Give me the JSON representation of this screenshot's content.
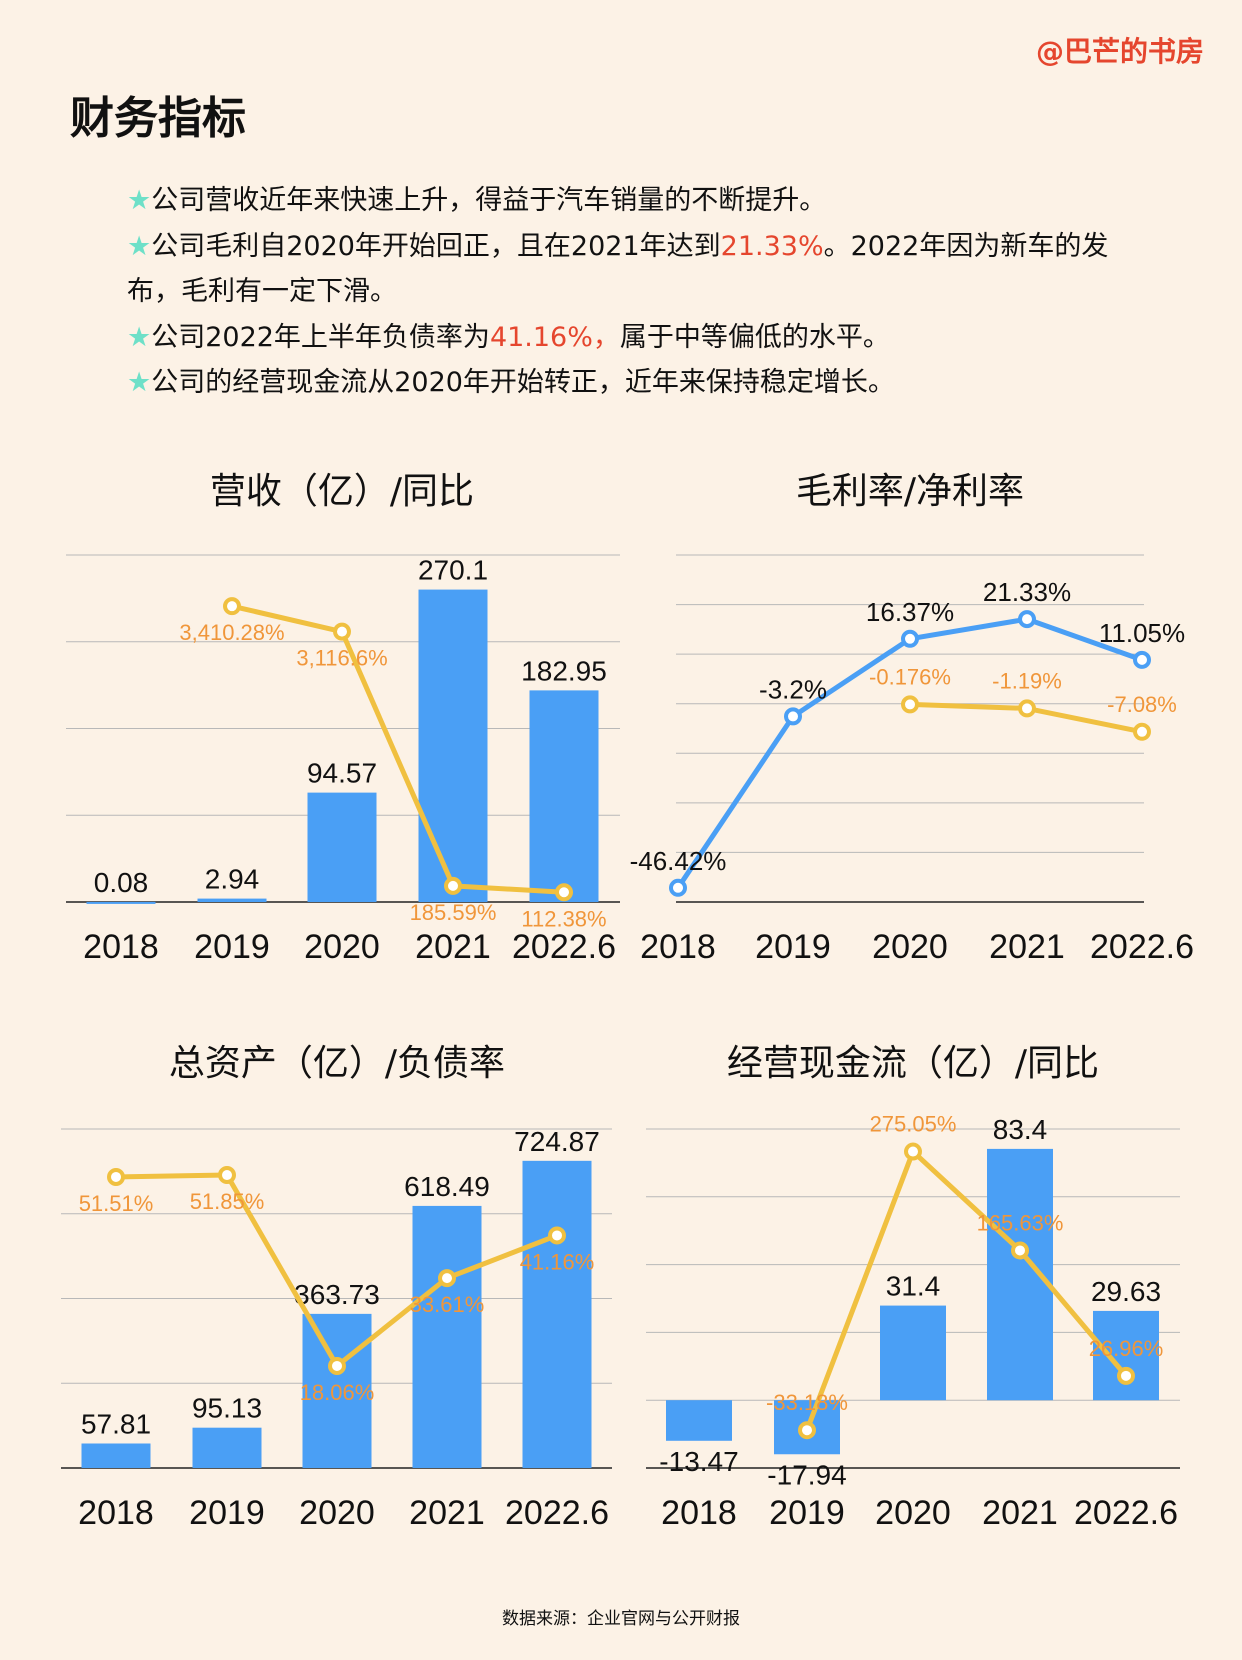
{
  "brand": "@巴芒的书房",
  "title": "财务指标",
  "bullets": [
    {
      "star": "★",
      "text": "公司营收近年来快速上升，得益于汽车销量的不断提升。"
    },
    {
      "star": "★",
      "pre": "公司毛利自2020年开始回正，且在2021年达到",
      "highlight": "21.33%",
      "post": "。2022年因为新车的发布，毛利有一定下滑。"
    },
    {
      "star": "★",
      "pre": "公司2022年上半年负债率为",
      "highlight": "41.16%，",
      "post": "属于中等偏低的水平。"
    },
    {
      "star": "★",
      "text": "公司的经营现金流从2020年开始转正，近年来保持稳定增长。"
    }
  ],
  "footer": "数据来源：企业官网与公开财报",
  "colors": {
    "background": "#fcf2e6",
    "bar": "#4a9ff5",
    "line_yellow": "#f0c040",
    "line_blue": "#4a9ff5",
    "label_orange": "#f0963a",
    "highlight_red": "#e5462e",
    "star": "#6ee0c8"
  },
  "chart_data": [
    {
      "type": "bar+line",
      "title": "营收（亿）/同比",
      "categories": [
        "2018",
        "2019",
        "2020",
        "2021",
        "2022.6"
      ],
      "grid": true,
      "ylim": [
        0,
        300
      ],
      "y2lim": [
        0,
        4000
      ],
      "bars": {
        "values": [
          0.08,
          2.94,
          94.57,
          270.1,
          182.95
        ],
        "labels": [
          "0.08",
          "2.94",
          "94.57",
          "270.1",
          "182.95"
        ]
      },
      "lines": [
        {
          "axis": "y2",
          "color": "yellow",
          "values": [
            null,
            3410.28,
            3116.6,
            185.59,
            112.38
          ],
          "labels": [
            "",
            "3,410.28%",
            "3,116.6%",
            "185.59%",
            "112.38%"
          ]
        }
      ]
    },
    {
      "type": "line",
      "title": "毛利率/净利率",
      "categories": [
        "2018",
        "2019",
        "2020",
        "2021",
        "2022.6"
      ],
      "grid": true,
      "ylim": [
        -50,
        37.5
      ],
      "lines": [
        {
          "axis": "y",
          "color": "blue",
          "values": [
            -46.42,
            -3.2,
            16.37,
            21.33,
            11.05
          ],
          "labels": [
            "-46.42%",
            "-3.2%",
            "16.37%",
            "21.33%",
            "11.05%"
          ]
        },
        {
          "axis": "y",
          "color": "yellow",
          "values": [
            null,
            null,
            -0.176,
            -1.19,
            -7.08
          ],
          "labels": [
            "",
            "",
            "-0.176%",
            "-1.19%",
            "-7.08%"
          ]
        }
      ]
    },
    {
      "type": "bar+line",
      "title": "总资产（亿）/负债率",
      "categories": [
        "2018",
        "2019",
        "2020",
        "2021",
        "2022.6"
      ],
      "grid": true,
      "ylim": [
        0,
        800
      ],
      "y2lim": [
        0,
        60
      ],
      "bars": {
        "values": [
          57.81,
          95.13,
          363.73,
          618.49,
          724.87
        ],
        "labels": [
          "57.81",
          "95.13",
          "363.73",
          "618.49",
          "724.87"
        ]
      },
      "lines": [
        {
          "axis": "y2",
          "color": "yellow",
          "values": [
            51.51,
            51.85,
            18.06,
            33.61,
            41.16
          ],
          "labels": [
            "51.51%",
            "51.85%",
            "18.06%",
            "33.61%",
            "41.16%"
          ]
        }
      ]
    },
    {
      "type": "bar+line",
      "title": "经营现金流（亿）/同比",
      "categories": [
        "2018",
        "2019",
        "2020",
        "2021",
        "2022.6"
      ],
      "grid": true,
      "ylim": [
        -22.5,
        90
      ],
      "y2lim": [
        -75,
        300
      ],
      "bars": {
        "values": [
          -13.47,
          -17.94,
          31.4,
          83.4,
          29.63
        ],
        "labels": [
          "-13.47",
          "-17.94",
          "31.4",
          "83.4",
          "29.63"
        ]
      },
      "lines": [
        {
          "axis": "y2",
          "color": "yellow",
          "values": [
            null,
            -33.18,
            275.05,
            165.63,
            26.96
          ],
          "labels": [
            "",
            "-33.18%",
            "275.05%",
            "165.63%",
            "26.96%"
          ]
        }
      ]
    }
  ]
}
